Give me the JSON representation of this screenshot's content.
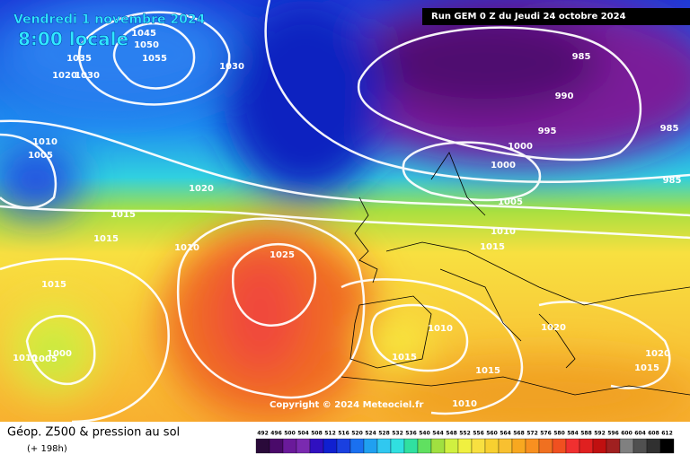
{
  "header": {
    "date": "Vendredi 1 novembre 2024",
    "time": "8:00 locale",
    "run": "Run GEM 0 Z du Jeudi 24 octobre 2024"
  },
  "copyright": "Copyright © 2024 Meteociel.fr",
  "footer": {
    "title": "Géop. Z500 & pression au sol",
    "lead": "(+ 198h)"
  },
  "isobar_labels": [
    "1045",
    "1050",
    "1055",
    "1035",
    "1020",
    "1030",
    "1030",
    "1010",
    "1005",
    "1020",
    "1015",
    "1015",
    "1010",
    "1025",
    "1015",
    "1010",
    "1005",
    "1000",
    "985",
    "990",
    "995",
    "1000",
    "1000",
    "985",
    "985",
    "1005",
    "1010",
    "1015",
    "1010",
    "1015",
    "1015",
    "1010",
    "1020",
    "1020",
    "1015"
  ],
  "legend_scale": [
    492,
    496,
    500,
    504,
    508,
    512,
    516,
    520,
    524,
    528,
    532,
    536,
    540,
    544,
    548,
    552,
    556,
    560,
    564,
    568,
    572,
    576,
    580,
    584,
    588,
    592,
    596,
    600,
    604,
    608,
    612
  ]
}
